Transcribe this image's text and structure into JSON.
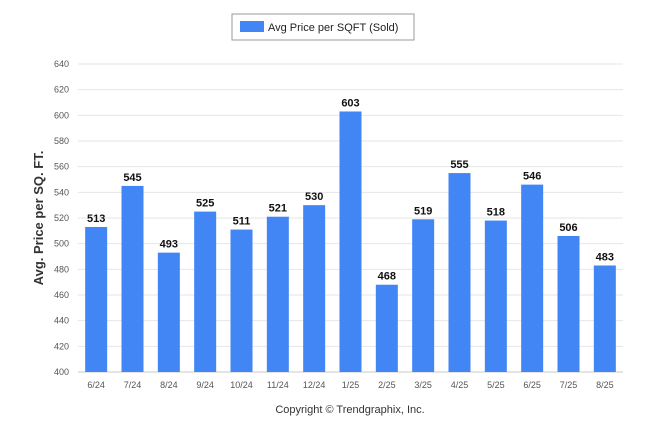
{
  "chart_data": {
    "type": "bar",
    "categories": [
      "6/24",
      "7/24",
      "8/24",
      "9/24",
      "10/24",
      "11/24",
      "12/24",
      "1/25",
      "2/25",
      "3/25",
      "4/25",
      "5/25",
      "6/25",
      "7/25",
      "8/25"
    ],
    "series": [
      {
        "name": "Avg Price per SQFT (Sold)",
        "values": [
          513,
          545,
          493,
          525,
          511,
          521,
          530,
          603,
          468,
          519,
          555,
          518,
          546,
          506,
          483
        ]
      }
    ],
    "title": "",
    "xlabel": "",
    "ylabel": "Avg. Price per SQ. FT.",
    "ylim": [
      400,
      640
    ],
    "yticks": [
      400,
      420,
      440,
      460,
      480,
      500,
      520,
      540,
      560,
      580,
      600,
      620,
      640
    ],
    "grid": true,
    "legend_position": "top-center",
    "bar_color": "#4285f4",
    "data_labels": true
  },
  "footer": {
    "copyright": "Copyright © Trendgraphix, Inc."
  }
}
